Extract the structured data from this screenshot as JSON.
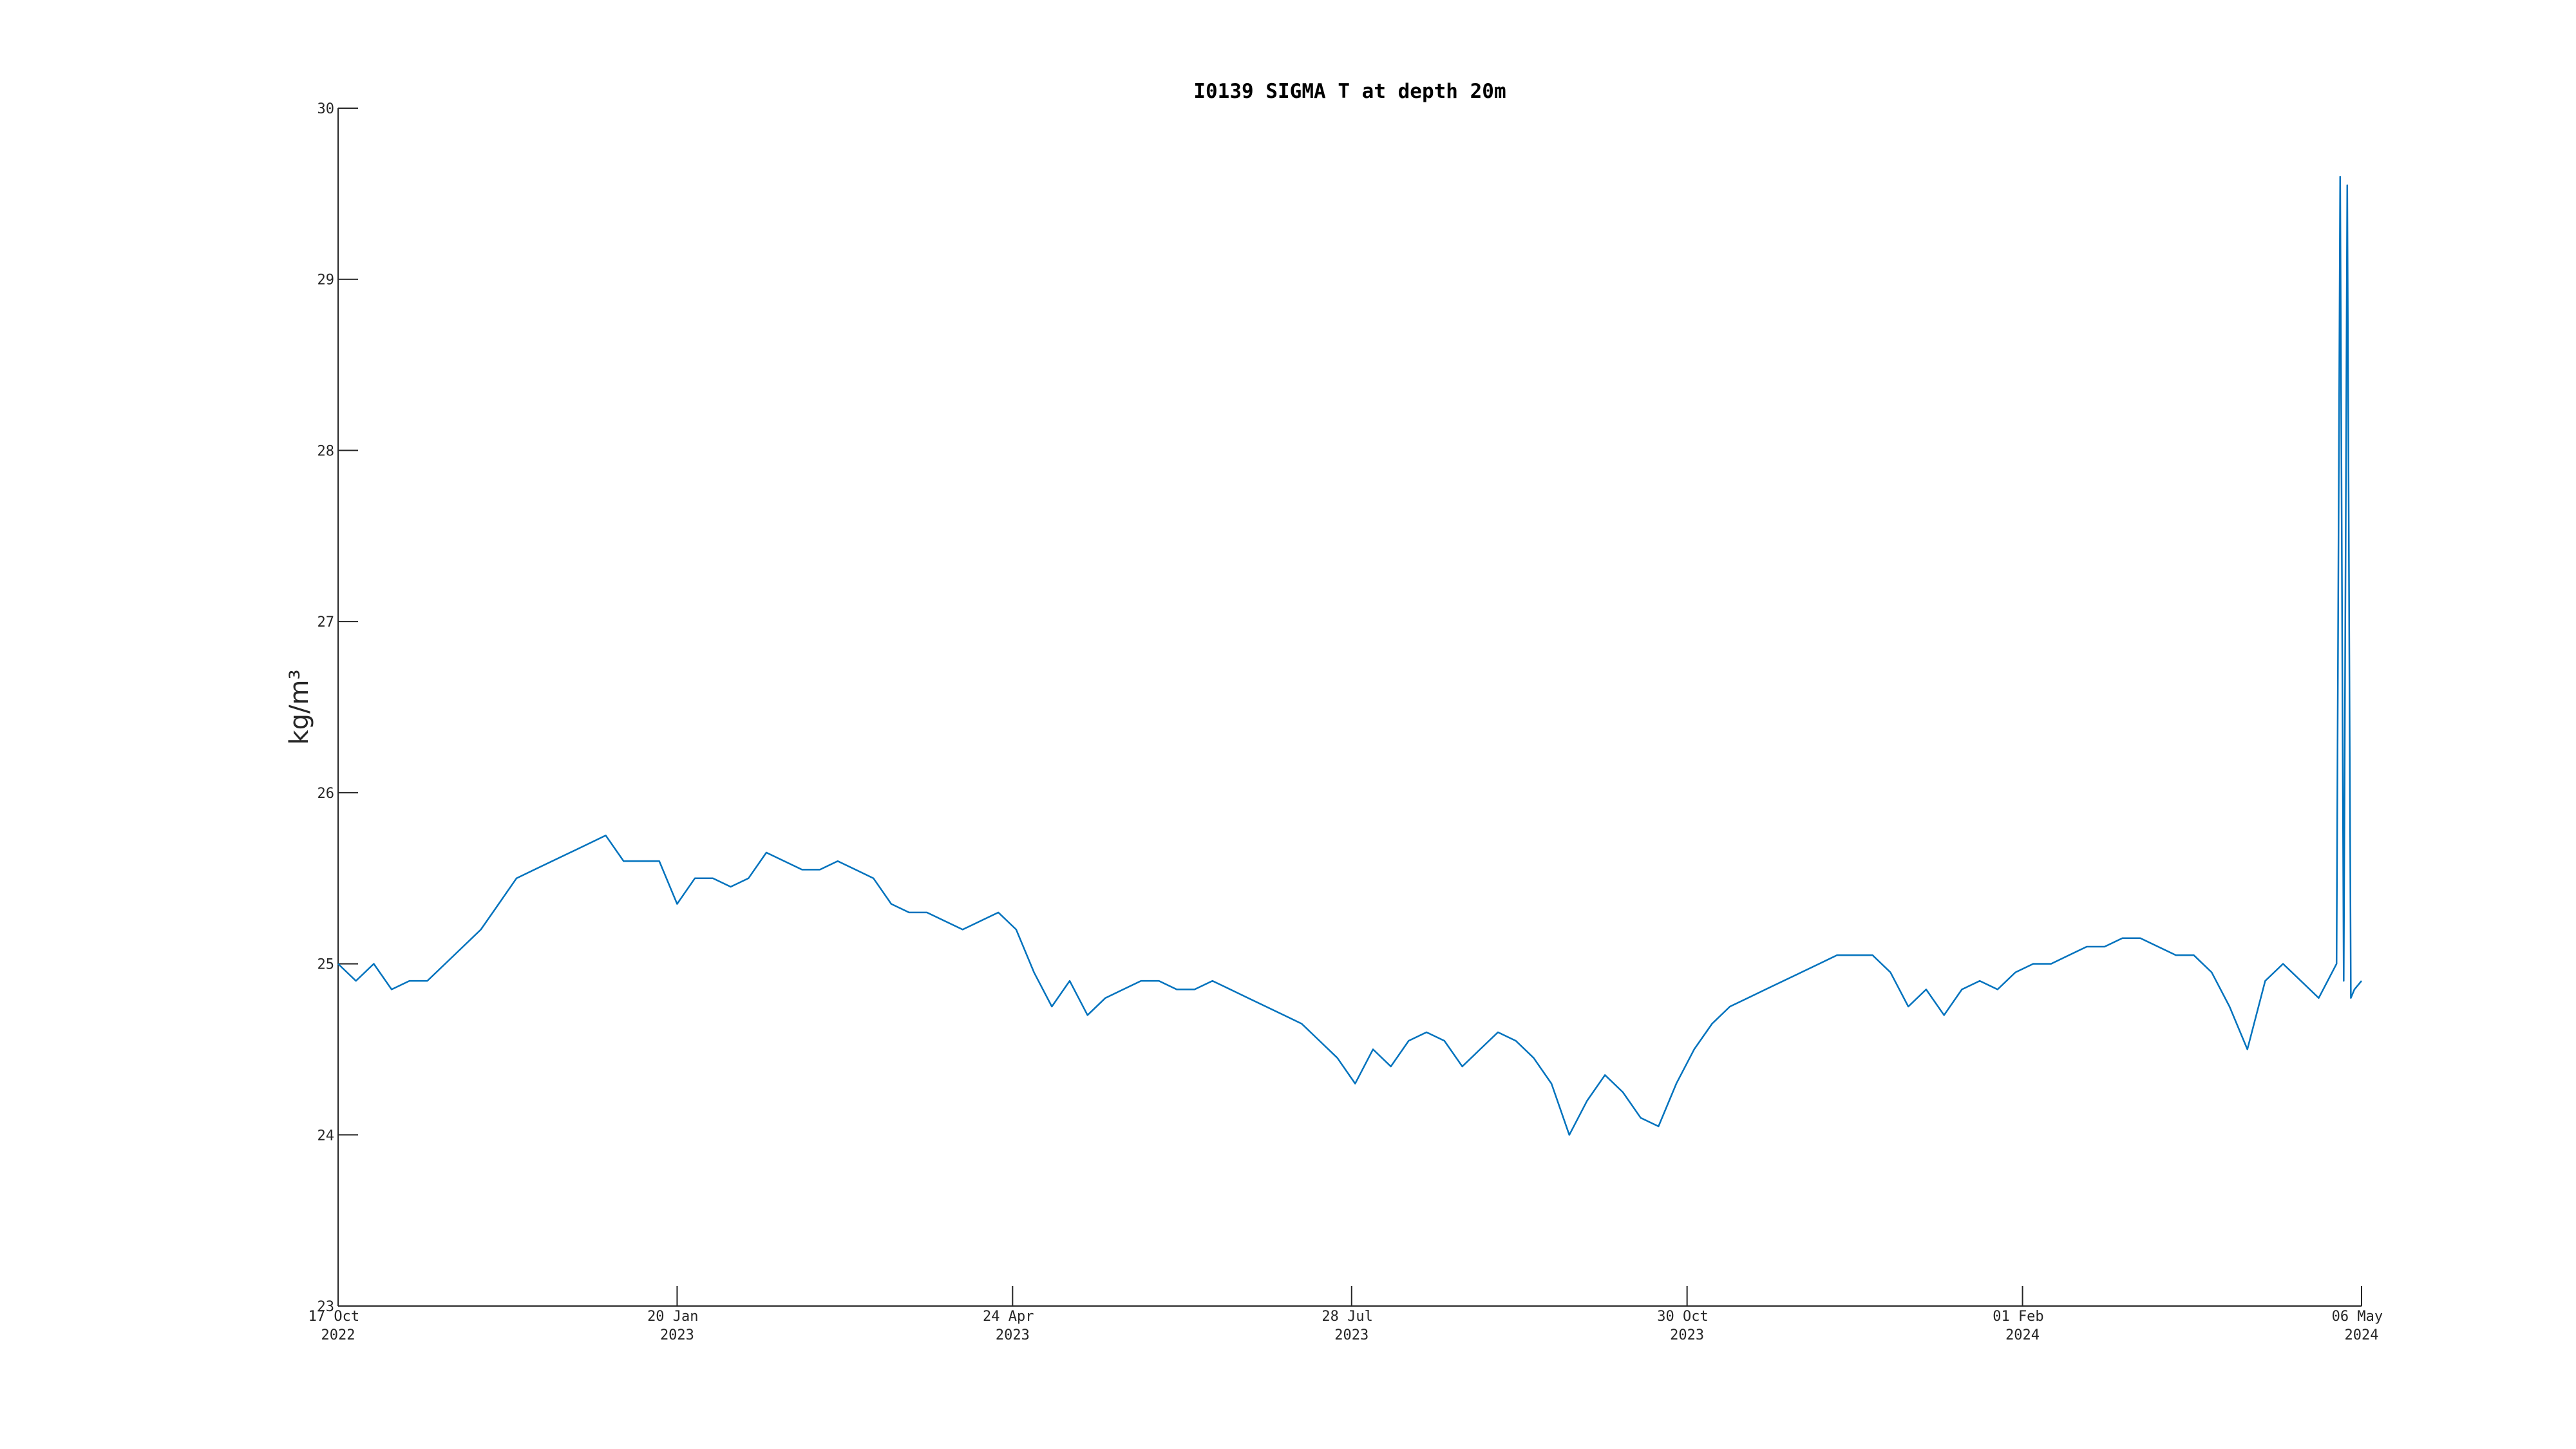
{
  "chart_data": {
    "type": "line",
    "title": "I0139 SIGMA T at depth 20m",
    "y_label": "kg/m³",
    "color": "#0072bd",
    "x": [
      "2022-10-17",
      "2022-10-22",
      "2022-10-27",
      "2022-11-01",
      "2022-11-06",
      "2022-11-11",
      "2022-11-16",
      "2022-11-21",
      "2022-11-26",
      "2022-12-01",
      "2022-12-06",
      "2022-12-11",
      "2022-12-16",
      "2022-12-21",
      "2022-12-26",
      "2022-12-31",
      "2023-01-05",
      "2023-01-10",
      "2023-01-15",
      "2023-01-20",
      "2023-01-25",
      "2023-01-30",
      "2023-02-04",
      "2023-02-09",
      "2023-02-14",
      "2023-02-19",
      "2023-02-24",
      "2023-03-01",
      "2023-03-06",
      "2023-03-11",
      "2023-03-16",
      "2023-03-21",
      "2023-03-26",
      "2023-03-31",
      "2023-04-05",
      "2023-04-10",
      "2023-04-15",
      "2023-04-20",
      "2023-04-25",
      "2023-04-30",
      "2023-05-05",
      "2023-05-10",
      "2023-05-15",
      "2023-05-20",
      "2023-05-25",
      "2023-05-30",
      "2023-06-04",
      "2023-06-09",
      "2023-06-14",
      "2023-06-19",
      "2023-06-24",
      "2023-06-29",
      "2023-07-04",
      "2023-07-09",
      "2023-07-14",
      "2023-07-19",
      "2023-07-24",
      "2023-07-29",
      "2023-08-03",
      "2023-08-08",
      "2023-08-13",
      "2023-08-18",
      "2023-08-23",
      "2023-08-28",
      "2023-09-02",
      "2023-09-07",
      "2023-09-12",
      "2023-09-17",
      "2023-09-22",
      "2023-09-27",
      "2023-10-02",
      "2023-10-07",
      "2023-10-12",
      "2023-10-17",
      "2023-10-22",
      "2023-10-27",
      "2023-11-01",
      "2023-11-06",
      "2023-11-11",
      "2023-11-16",
      "2023-11-21",
      "2023-11-26",
      "2023-12-01",
      "2023-12-06",
      "2023-12-11",
      "2023-12-16",
      "2023-12-21",
      "2023-12-26",
      "2023-12-31",
      "2024-01-05",
      "2024-01-10",
      "2024-01-15",
      "2024-01-20",
      "2024-01-25",
      "2024-01-30",
      "2024-02-04",
      "2024-02-09",
      "2024-02-14",
      "2024-02-19",
      "2024-02-24",
      "2024-02-29",
      "2024-03-05",
      "2024-03-10",
      "2024-03-15",
      "2024-03-20",
      "2024-03-25",
      "2024-03-30",
      "2024-04-04",
      "2024-04-09",
      "2024-04-14",
      "2024-04-19",
      "2024-04-24",
      "2024-04-29",
      "2024-04-30",
      "2024-05-01",
      "2024-05-02",
      "2024-05-03",
      "2024-05-04",
      "2024-05-06"
    ],
    "values": [
      25.0,
      24.9,
      25.0,
      24.85,
      24.9,
      24.9,
      25.0,
      25.1,
      25.2,
      25.35,
      25.5,
      25.55,
      25.6,
      25.65,
      25.7,
      25.75,
      25.6,
      25.6,
      25.6,
      25.35,
      25.5,
      25.5,
      25.45,
      25.5,
      25.65,
      25.6,
      25.55,
      25.55,
      25.6,
      25.55,
      25.5,
      25.35,
      25.3,
      25.3,
      25.25,
      25.2,
      25.25,
      25.3,
      25.2,
      24.95,
      24.75,
      24.9,
      24.7,
      24.8,
      24.85,
      24.9,
      24.9,
      24.85,
      24.85,
      24.9,
      24.85,
      24.8,
      24.75,
      24.7,
      24.65,
      24.55,
      24.45,
      24.3,
      24.5,
      24.4,
      24.55,
      24.6,
      24.55,
      24.4,
      24.5,
      24.6,
      24.55,
      24.45,
      24.3,
      24.0,
      24.2,
      24.35,
      24.25,
      24.1,
      24.05,
      24.3,
      24.5,
      24.65,
      24.75,
      24.8,
      24.85,
      24.9,
      24.95,
      25.0,
      25.05,
      25.05,
      25.05,
      24.95,
      24.75,
      24.85,
      24.7,
      24.85,
      24.9,
      24.85,
      24.95,
      25.0,
      25.0,
      25.05,
      25.1,
      25.1,
      25.15,
      25.15,
      25.1,
      25.05,
      25.05,
      24.95,
      24.75,
      24.5,
      24.9,
      25.0,
      24.9,
      24.8,
      25.0,
      29.6,
      24.9,
      29.55,
      24.8,
      24.85,
      24.9
    ],
    "xlim": [
      "2022-10-17",
      "2024-05-06"
    ],
    "xticks": [
      {
        "value": "2022-10-17",
        "label": "17 Oct 2022"
      },
      {
        "value": "2023-01-20",
        "label": "20 Jan 2023"
      },
      {
        "value": "2023-04-24",
        "label": "24 Apr 2023"
      },
      {
        "value": "2023-07-28",
        "label": "28 Jul 2023"
      },
      {
        "value": "2023-10-30",
        "label": "30 Oct 2023"
      },
      {
        "value": "2024-02-01",
        "label": "01 Feb 2024"
      },
      {
        "value": "2024-05-06",
        "label": "06 May 2024"
      }
    ],
    "ylim": [
      23,
      30
    ],
    "yticks": [
      23,
      24,
      25,
      26,
      27,
      28,
      29,
      30
    ]
  }
}
